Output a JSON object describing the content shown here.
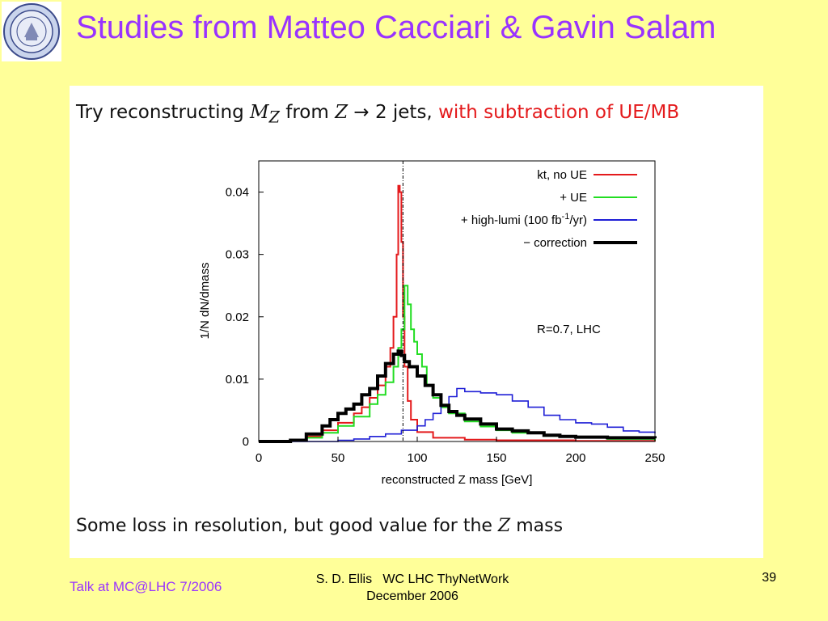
{
  "slide": {
    "title": "Studies from Matteo Cacciari & Gavin Salam",
    "heading": {
      "prefix": "Try reconstructing ",
      "mz": "M",
      "mz_sub": "Z",
      "middle": " from ",
      "z": "Z",
      "arrow": " → 2 jets, ",
      "highlight": "with subtraction of UE/MB"
    },
    "caption": {
      "prefix": "Some loss in resolution, but good value for the ",
      "z": "Z",
      "suffix": " mass"
    },
    "footer_left": "Talk at MC@LHC 7/2006",
    "footer_center_line1": "S. D. Ellis   WC LHC ThyNetWork",
    "footer_center_line2": "December 2006",
    "page_number": "39"
  },
  "colors": {
    "title": "#9933ff",
    "background": "#ffff99",
    "highlight": "#e41a1c",
    "kt_no_ue": "#e41a1c",
    "plus_ue": "#22dd22",
    "high_lumi": "#1f1fd6",
    "correction": "#000000"
  },
  "icons": {
    "logo": "university-seal-icon"
  },
  "chart_data": {
    "type": "line",
    "xlabel": "reconstructed Z mass [GeV]",
    "ylabel": "1/N dN/dmass",
    "xlim": [
      0,
      250
    ],
    "ylim": [
      0,
      0.045
    ],
    "x_ticks": [
      "0",
      "50",
      "100",
      "150",
      "200",
      "250"
    ],
    "y_ticks": [
      "0",
      "0.01",
      "0.02",
      "0.03",
      "0.04"
    ],
    "grid": false,
    "legend_position": "top-right",
    "annotation": "R=0.7, LHC",
    "reference_line_x": 91,
    "series": [
      {
        "name": "kt, no UE",
        "color": "#e41a1c",
        "points": [
          [
            0,
            0
          ],
          [
            20,
            0.0003
          ],
          [
            30,
            0.0008
          ],
          [
            40,
            0.0018
          ],
          [
            50,
            0.003
          ],
          [
            60,
            0.0045
          ],
          [
            65,
            0.0055
          ],
          [
            70,
            0.007
          ],
          [
            75,
            0.009
          ],
          [
            80,
            0.012
          ],
          [
            83,
            0.015
          ],
          [
            85,
            0.02
          ],
          [
            87,
            0.03
          ],
          [
            88,
            0.041
          ],
          [
            89,
            0.04
          ],
          [
            90,
            0.032
          ],
          [
            91,
            0.02
          ],
          [
            92,
            0.012
          ],
          [
            94,
            0.0065
          ],
          [
            96,
            0.0035
          ],
          [
            100,
            0.0015
          ],
          [
            110,
            0.0006
          ],
          [
            130,
            0.0003
          ],
          [
            150,
            0.0002
          ],
          [
            200,
            0.0001
          ],
          [
            250,
            0
          ]
        ]
      },
      {
        "name": "+ UE",
        "color": "#22dd22",
        "points": [
          [
            0,
            0
          ],
          [
            20,
            0.0002
          ],
          [
            30,
            0.0006
          ],
          [
            40,
            0.0014
          ],
          [
            50,
            0.0025
          ],
          [
            60,
            0.004
          ],
          [
            70,
            0.006
          ],
          [
            75,
            0.0075
          ],
          [
            80,
            0.0095
          ],
          [
            85,
            0.012
          ],
          [
            88,
            0.015
          ],
          [
            90,
            0.018
          ],
          [
            92,
            0.025
          ],
          [
            94,
            0.022
          ],
          [
            96,
            0.018
          ],
          [
            98,
            0.016
          ],
          [
            100,
            0.014
          ],
          [
            103,
            0.012
          ],
          [
            106,
            0.009
          ],
          [
            110,
            0.007
          ],
          [
            115,
            0.0055
          ],
          [
            120,
            0.0045
          ],
          [
            130,
            0.0032
          ],
          [
            140,
            0.0024
          ],
          [
            150,
            0.0018
          ],
          [
            160,
            0.0014
          ],
          [
            180,
            0.0009
          ],
          [
            200,
            0.0006
          ],
          [
            220,
            0.0004
          ],
          [
            250,
            0.0002
          ]
        ]
      },
      {
        "name": "+ high-lumi (100 fb^-1/yr)",
        "label_main": "+ high-lumi (100 fb",
        "label_sup": "-1",
        "label_end": "/yr)",
        "color": "#1f1fd6",
        "points": [
          [
            0,
            0
          ],
          [
            30,
            0
          ],
          [
            50,
            0.0002
          ],
          [
            60,
            0.0004
          ],
          [
            70,
            0.0008
          ],
          [
            80,
            0.0012
          ],
          [
            90,
            0.0018
          ],
          [
            100,
            0.0025
          ],
          [
            105,
            0.0035
          ],
          [
            110,
            0.0045
          ],
          [
            115,
            0.0058
          ],
          [
            120,
            0.0072
          ],
          [
            125,
            0.0085
          ],
          [
            130,
            0.008
          ],
          [
            140,
            0.0078
          ],
          [
            150,
            0.0075
          ],
          [
            160,
            0.0065
          ],
          [
            170,
            0.0055
          ],
          [
            180,
            0.0042
          ],
          [
            190,
            0.0035
          ],
          [
            200,
            0.003
          ],
          [
            210,
            0.0028
          ],
          [
            220,
            0.0023
          ],
          [
            230,
            0.0017
          ],
          [
            240,
            0.0015
          ],
          [
            250,
            0.0013
          ]
        ]
      },
      {
        "name": "− correction",
        "color": "#000000",
        "points": [
          [
            0,
            0
          ],
          [
            20,
            0.0002
          ],
          [
            30,
            0.0012
          ],
          [
            40,
            0.0025
          ],
          [
            45,
            0.0035
          ],
          [
            50,
            0.0045
          ],
          [
            55,
            0.0052
          ],
          [
            60,
            0.006
          ],
          [
            65,
            0.0075
          ],
          [
            70,
            0.0085
          ],
          [
            75,
            0.0105
          ],
          [
            80,
            0.0125
          ],
          [
            85,
            0.014
          ],
          [
            88,
            0.0145
          ],
          [
            90,
            0.0138
          ],
          [
            92,
            0.0128
          ],
          [
            95,
            0.012
          ],
          [
            100,
            0.0105
          ],
          [
            105,
            0.009
          ],
          [
            110,
            0.0075
          ],
          [
            115,
            0.0058
          ],
          [
            120,
            0.0048
          ],
          [
            125,
            0.0042
          ],
          [
            130,
            0.0036
          ],
          [
            140,
            0.0028
          ],
          [
            150,
            0.002
          ],
          [
            160,
            0.0017
          ],
          [
            170,
            0.0014
          ],
          [
            180,
            0.001
          ],
          [
            190,
            0.0008
          ],
          [
            200,
            0.0007
          ],
          [
            220,
            0.0006
          ],
          [
            250,
            0.0005
          ]
        ]
      }
    ]
  }
}
